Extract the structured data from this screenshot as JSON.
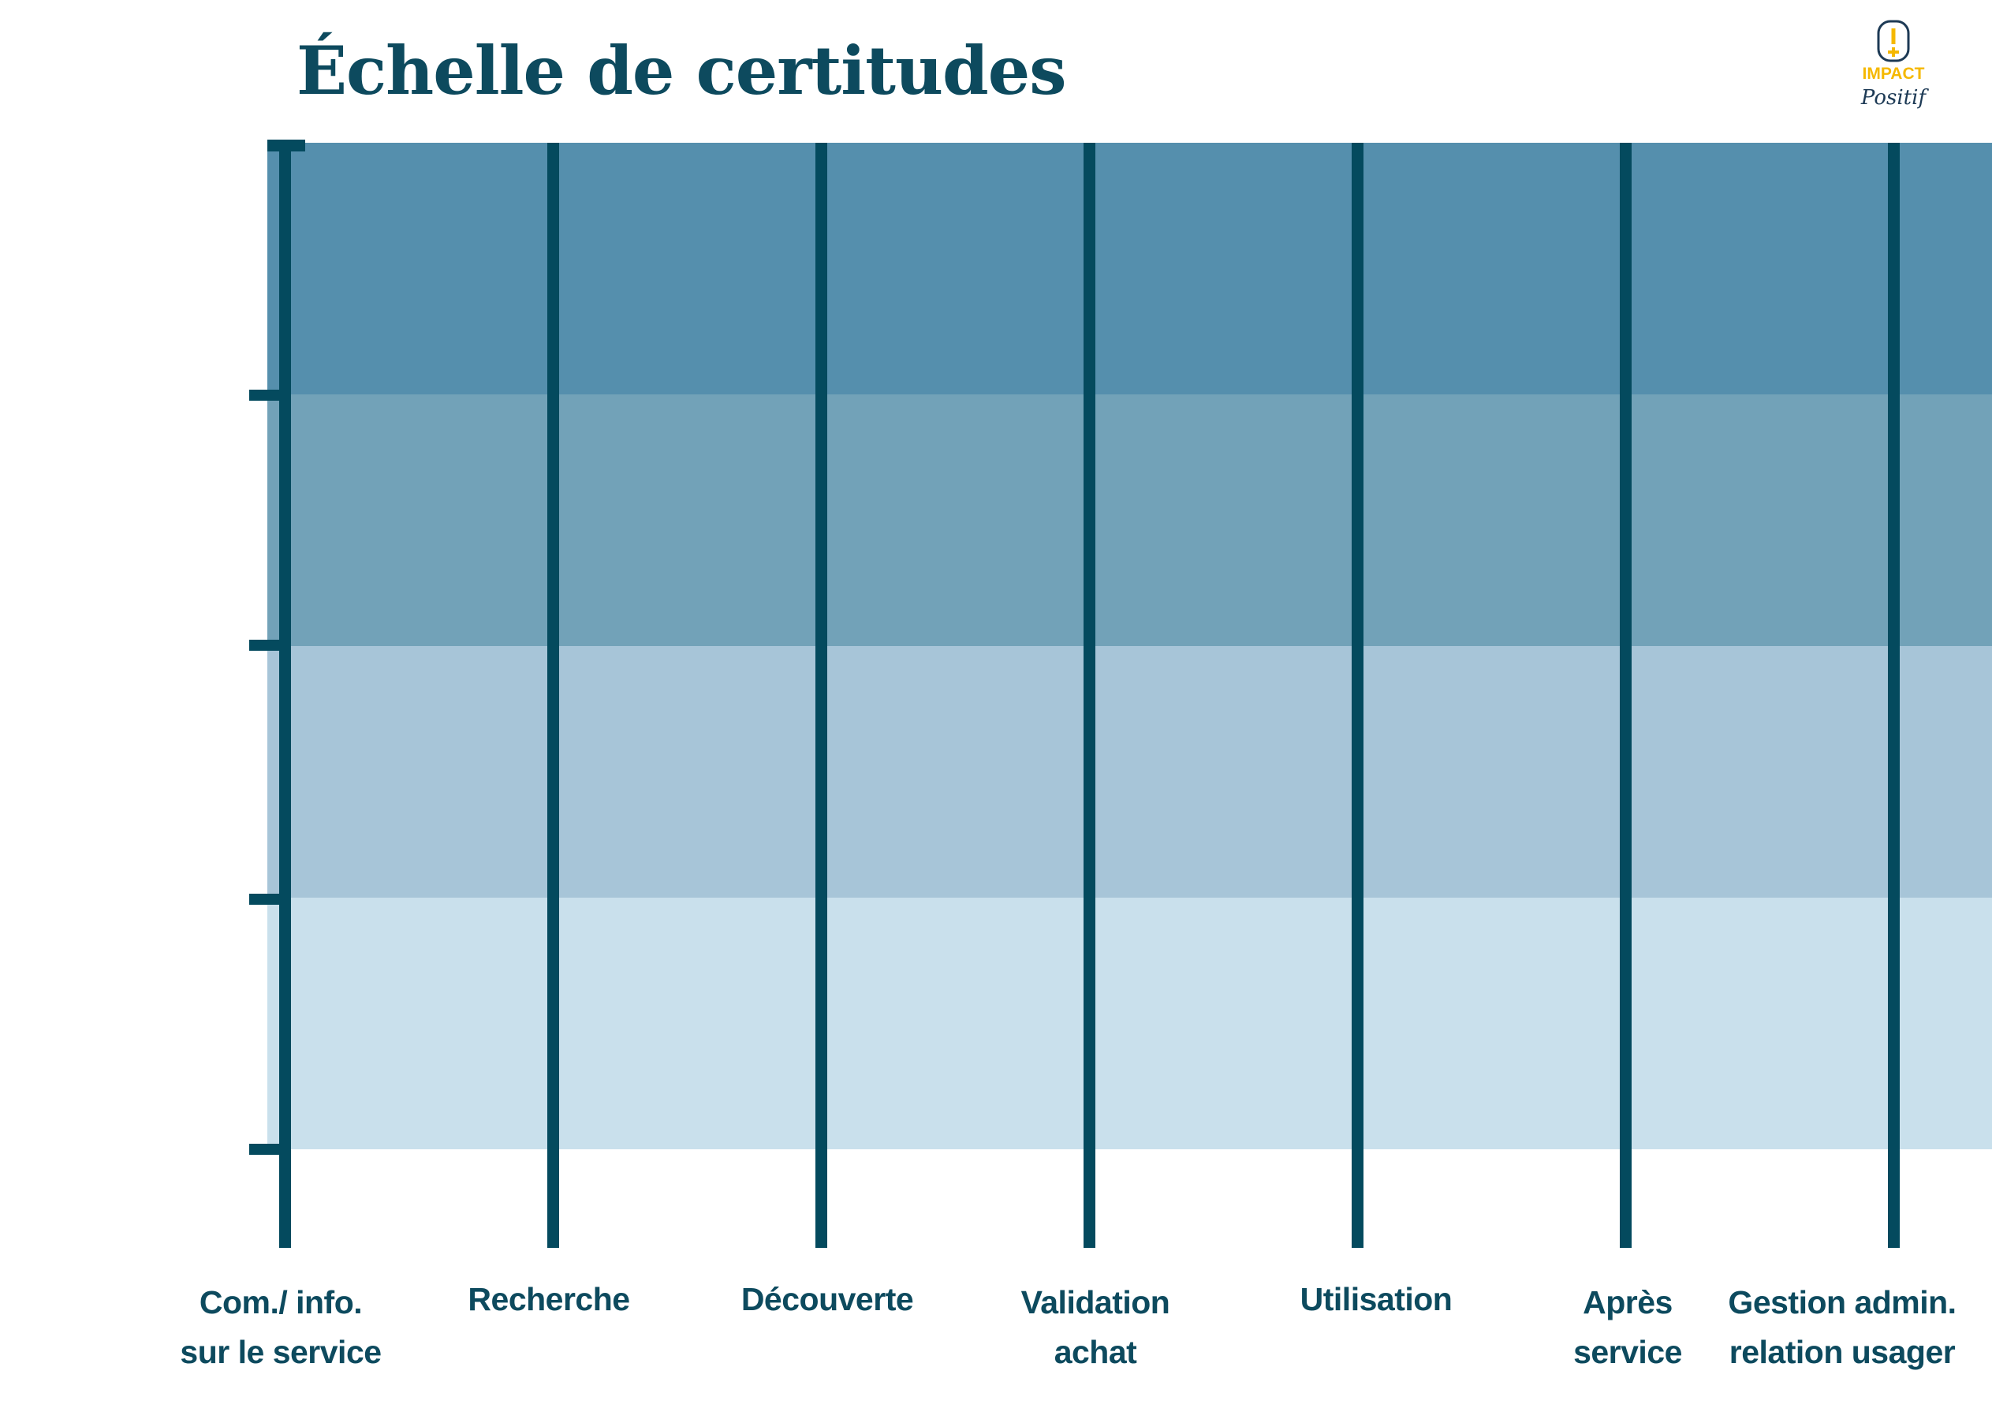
{
  "title": "Échelle de certitudes",
  "logo": {
    "text_top": "IMPACT",
    "text_bottom": "Positif",
    "icon": "exclamation-plus-icon"
  },
  "colors": {
    "line": "#044a5e",
    "title": "#0d4a5e",
    "bands": [
      "#558fad",
      "#72a2b8",
      "#a7c5d8",
      "#c9e0ec"
    ]
  },
  "stages": [
    {
      "line1": "Com./ info.",
      "line2": "sur le service"
    },
    {
      "line1": "Recherche",
      "line2": ""
    },
    {
      "line1": "Découverte",
      "line2": ""
    },
    {
      "line1": "Validation",
      "line2": "achat"
    },
    {
      "line1": "Utilisation",
      "line2": ""
    },
    {
      "line1": "Après",
      "line2": "service"
    },
    {
      "line1": "Gestion admin.",
      "line2": "relation usager"
    }
  ]
}
